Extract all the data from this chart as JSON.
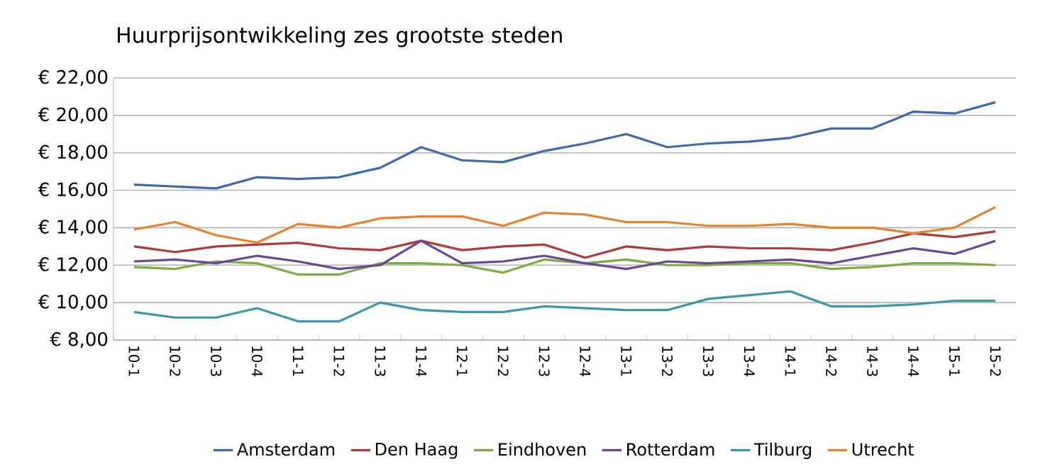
{
  "chart_data": {
    "type": "line",
    "title": "Huurprijsontwikkeling zes grootste steden",
    "categories": [
      "10-1",
      "10-2",
      "10-3",
      "10-4",
      "11-1",
      "11-2",
      "11-3",
      "11-4",
      "12-1",
      "12-2",
      "12-3",
      "12-4",
      "13-1",
      "13-2",
      "13-3",
      "13-4",
      "14-1",
      "14-2",
      "14-3",
      "14-4",
      "15-1",
      "15-2"
    ],
    "series": [
      {
        "name": "Amsterdam",
        "color": "#3f68ad",
        "values": [
          16.3,
          16.2,
          16.1,
          16.7,
          16.6,
          16.7,
          17.2,
          18.3,
          17.6,
          17.5,
          18.1,
          18.5,
          19.0,
          18.3,
          18.5,
          18.6,
          18.8,
          19.3,
          19.3,
          20.2,
          20.1,
          20.7
        ]
      },
      {
        "name": "Den Haag",
        "color": "#b03a3a",
        "values": [
          13.0,
          12.7,
          13.0,
          13.1,
          13.2,
          12.9,
          12.8,
          13.3,
          12.8,
          13.0,
          13.1,
          12.4,
          13.0,
          12.8,
          13.0,
          12.9,
          12.9,
          12.8,
          13.2,
          13.7,
          13.5,
          13.8
        ]
      },
      {
        "name": "Eindhoven",
        "color": "#7cac3e",
        "values": [
          11.9,
          11.8,
          12.2,
          12.1,
          11.5,
          11.5,
          12.1,
          12.1,
          12.0,
          11.6,
          12.3,
          12.1,
          12.3,
          12.0,
          12.0,
          12.1,
          12.1,
          11.8,
          11.9,
          12.1,
          12.1,
          12.0
        ]
      },
      {
        "name": "Rotterdam",
        "color": "#6b4595",
        "values": [
          12.2,
          12.3,
          12.1,
          12.5,
          12.2,
          11.8,
          12.0,
          13.3,
          12.1,
          12.2,
          12.5,
          12.1,
          11.8,
          12.2,
          12.1,
          12.2,
          12.3,
          12.1,
          12.5,
          12.9,
          12.6,
          13.3
        ]
      },
      {
        "name": "Tilburg",
        "color": "#3a97ab",
        "values": [
          9.5,
          9.2,
          9.2,
          9.7,
          9.0,
          9.0,
          10.0,
          9.6,
          9.5,
          9.5,
          9.8,
          9.7,
          9.6,
          9.6,
          10.2,
          10.4,
          10.6,
          9.8,
          9.8,
          9.9,
          10.1,
          10.1
        ]
      },
      {
        "name": "Utrecht",
        "color": "#e8812c",
        "values": [
          13.9,
          14.3,
          13.6,
          13.2,
          14.2,
          14.0,
          14.5,
          14.6,
          14.6,
          14.1,
          14.8,
          14.7,
          14.3,
          14.3,
          14.1,
          14.1,
          14.2,
          14.0,
          14.0,
          13.7,
          14.0,
          15.1
        ]
      }
    ],
    "ylim": [
      8,
      22
    ],
    "yticks": [
      {
        "value": 8,
        "label": "€ 8,00"
      },
      {
        "value": 10,
        "label": "€ 10,00"
      },
      {
        "value": 12,
        "label": "€ 12,00"
      },
      {
        "value": 14,
        "label": "€ 14,00"
      },
      {
        "value": 16,
        "label": "€ 16,00"
      },
      {
        "value": 18,
        "label": "€ 18,00"
      },
      {
        "value": 20,
        "label": "€ 20,00"
      },
      {
        "value": 22,
        "label": "€ 22,00"
      }
    ],
    "grid": "y",
    "legend": "bottom",
    "marker": "none"
  }
}
